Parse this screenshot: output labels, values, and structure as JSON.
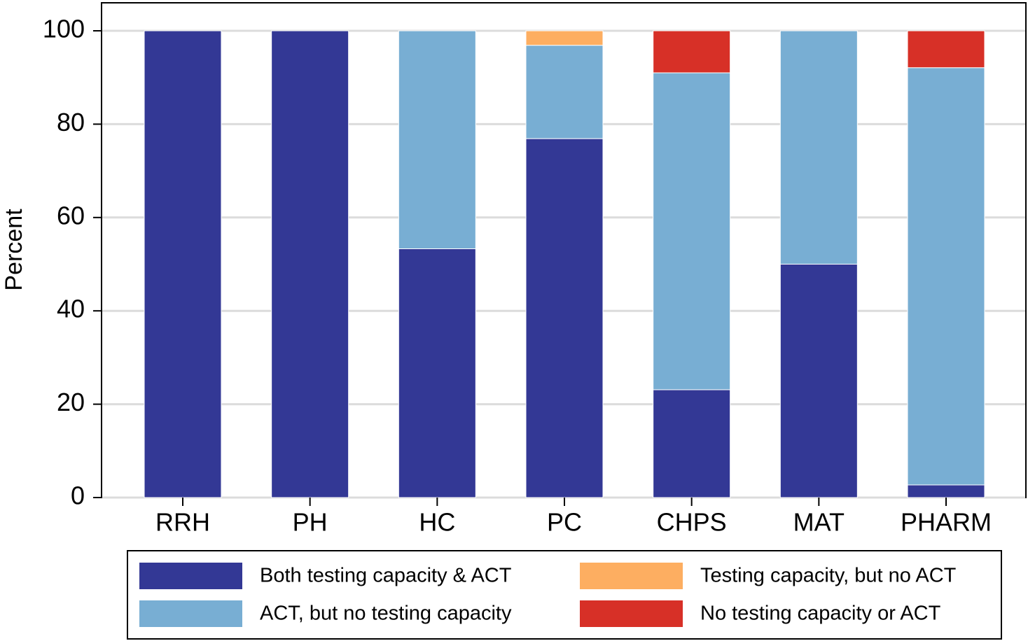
{
  "chart_data": {
    "type": "stacked_bar",
    "y_label": "Percent",
    "categories": [
      "RRH",
      "PH",
      "HC",
      "PC",
      "CHPS",
      "MAT",
      "PHARM"
    ],
    "series": [
      {
        "name": "Both testing capacity & ACT",
        "color": "#333895",
        "values": [
          100,
          100,
          53.3,
          76.9,
          23.1,
          50,
          2.7
        ]
      },
      {
        "name": "ACT, but no testing capacity",
        "color": "#78aed3",
        "values": [
          0,
          0,
          46.7,
          20,
          67.9,
          50,
          89.4
        ]
      },
      {
        "name": "Testing capacity, but no ACT",
        "color": "#fdae61",
        "values": [
          0,
          0,
          0,
          3.1,
          0,
          0,
          0
        ]
      },
      {
        "name": "No testing capacity or ACT",
        "color": "#d73027",
        "values": [
          0,
          0,
          0,
          0,
          9.0,
          0,
          7.9
        ]
      }
    ],
    "ylim": [
      0,
      106
    ],
    "yticks": [
      0,
      20,
      40,
      60,
      80,
      100
    ],
    "grid": true
  }
}
